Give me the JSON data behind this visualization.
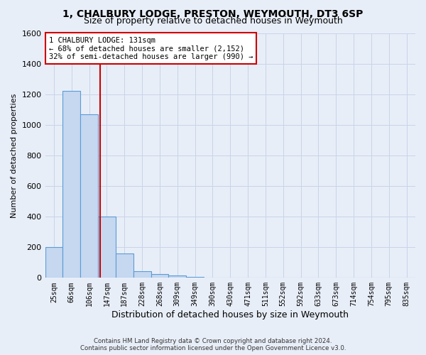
{
  "title": "1, CHALBURY LODGE, PRESTON, WEYMOUTH, DT3 6SP",
  "subtitle": "Size of property relative to detached houses in Weymouth",
  "xlabel": "Distribution of detached houses by size in Weymouth",
  "ylabel": "Number of detached properties",
  "bar_labels": [
    "25sqm",
    "66sqm",
    "106sqm",
    "147sqm",
    "187sqm",
    "228sqm",
    "268sqm",
    "309sqm",
    "349sqm",
    "390sqm",
    "430sqm",
    "471sqm",
    "511sqm",
    "552sqm",
    "592sqm",
    "633sqm",
    "673sqm",
    "714sqm",
    "754sqm",
    "795sqm",
    "835sqm"
  ],
  "bar_values": [
    200,
    1220,
    1070,
    400,
    160,
    45,
    25,
    15,
    5,
    0,
    0,
    0,
    0,
    0,
    0,
    0,
    0,
    0,
    0,
    0,
    0
  ],
  "bar_color": "#c5d8f0",
  "bar_edgecolor": "#5b9bd5",
  "ylim": [
    0,
    1600
  ],
  "yticks": [
    0,
    200,
    400,
    600,
    800,
    1000,
    1200,
    1400,
    1600
  ],
  "vline_x_bar_index": 2.61,
  "vline_color": "#cc0000",
  "annotation_line0": "1 CHALBURY LODGE: 131sqm",
  "annotation_line1": "← 68% of detached houses are smaller (2,152)",
  "annotation_line2": "32% of semi-detached houses are larger (990) →",
  "annotation_box_edgecolor": "#cc0000",
  "annotation_box_facecolor": "#ffffff",
  "grid_color": "#c8d4e8",
  "background_color": "#e8eef8",
  "footer_line1": "Contains HM Land Registry data © Crown copyright and database right 2024.",
  "footer_line2": "Contains public sector information licensed under the Open Government Licence v3.0."
}
